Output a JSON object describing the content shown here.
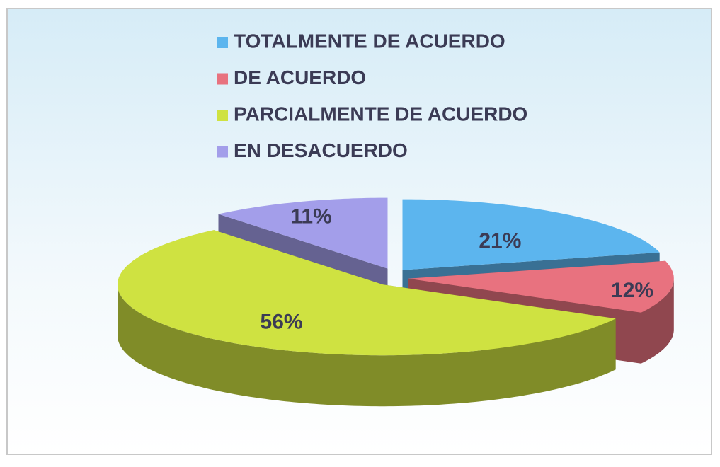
{
  "chart_data": {
    "type": "pie3d",
    "categories": [
      "TOTALMENTE DE ACUERDO",
      "DE ACUERDO",
      "PARCIALMENTE DE ACUERDO",
      "EN DESACUERDO"
    ],
    "values": [
      21,
      12,
      56,
      11
    ],
    "value_labels": [
      "21%",
      "12%",
      "56%",
      "11%"
    ],
    "colors": [
      "#5cb5ee",
      "#e8727f",
      "#cfe241",
      "#a39eea"
    ],
    "legend": "top"
  }
}
